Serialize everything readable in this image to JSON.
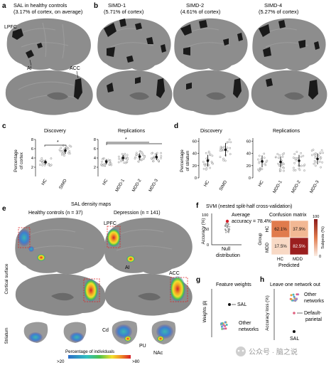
{
  "panel_letters": {
    "a": "a",
    "b": "b",
    "c": "c",
    "d": "d",
    "e": "e",
    "f": "f",
    "g": "g",
    "h": "h"
  },
  "panel_a": {
    "title_line1": "SAL in healthy controls",
    "title_line2": "(3.17% of cortex, on average)",
    "label_lpfc": "LPFC",
    "label_ai": "AI",
    "label_acc": "ACC"
  },
  "panel_b": {
    "cols": [
      {
        "title": "SIMD-1",
        "sub": "(5.71% of cortex)"
      },
      {
        "title": "SIMD-2",
        "sub": "(4.61% of cortex)"
      },
      {
        "title": "SIMD-4",
        "sub": "(5.27% of cortex)"
      }
    ]
  },
  "panel_c": {
    "discovery_title": "Discovery",
    "replication_title": "Replications",
    "ylabel_line1": "Percentage",
    "ylabel_line2": "of cortex",
    "yticks": [
      "2",
      "4",
      "6",
      "8"
    ],
    "sig": "*",
    "discovery_groups": [
      "HC",
      "SIMD"
    ],
    "replication_groups": [
      "HC",
      "MDD-1",
      "MDD-2",
      "MDD-3"
    ]
  },
  "panel_d": {
    "discovery_title": "Discovery",
    "replication_title": "Replications",
    "ylabel_line1": "Percentage",
    "ylabel_line2": "of striatum",
    "yticks": [
      "0",
      "20",
      "40",
      "60"
    ],
    "discovery_groups": [
      "HC",
      "SIMD"
    ],
    "replication_groups": [
      "HC",
      "MDD-1",
      "MDD-2",
      "MDD-3"
    ]
  },
  "panel_e": {
    "title": "SAL density maps",
    "hc_title": "Healthy controls (n = 37)",
    "dep_title": "Depression (n = 141)",
    "row_cortical": "Cortical surface",
    "row_striatum": "Striatum",
    "label_lpfc": "LPFC",
    "label_ai": "AI",
    "label_acc": "ACC",
    "label_cd": "Cd",
    "label_pu": "PU",
    "label_nac": "NAc",
    "colorbar_title": "Percentage of individuals",
    "colorbar_min": ">20",
    "colorbar_max": ">80"
  },
  "panel_f": {
    "title": "SVM (nested split-half cross-validation)",
    "ylabel": "Accuracy (%)",
    "yticks": [
      "100",
      "50",
      "0"
    ],
    "avg_line1": "Average",
    "avg_line2": "accuracy = 78.4%",
    "null_line1": "Null",
    "null_line2": "distribution",
    "cm_title": "Confusion matrix",
    "cm_row_axis": "Group",
    "cm_rows": [
      "HC",
      "MDD"
    ],
    "cm_col_axis": "Predicted",
    "cm_cols": [
      "HC",
      "MDD"
    ],
    "cm_values": [
      "62.1%",
      "37.9%",
      "17.5%",
      "82.5%"
    ],
    "cbar_title": "Subjects (%)",
    "cbar_max": "100",
    "cbar_min": "0"
  },
  "panel_g": {
    "title": "Feature weights",
    "ylabel": "Weights |β|",
    "label_sal": "SAL",
    "label_other_line1": "Other",
    "label_other_line2": "networks"
  },
  "panel_h": {
    "title": "Leave one network out",
    "ylabel": "Accuracy loss (%)",
    "label_other_line1": "Other",
    "label_other_line2": "networks",
    "label_dp_line1": "Default-",
    "label_dp_line2": "parietal",
    "label_sal": "SAL"
  },
  "watermark": {
    "text": "公众号 · 脑之说"
  },
  "chart_data": [
    {
      "type": "scatter",
      "title": "Discovery",
      "ylabel": "Percentage of cortex",
      "categories": [
        "HC",
        "SIMD"
      ],
      "series": [
        {
          "values": [
            3.1,
            5.6
          ]
        }
      ],
      "ylim": [
        0,
        8
      ],
      "annotations": [
        "*"
      ]
    },
    {
      "type": "scatter",
      "title": "Replications",
      "ylabel": "Percentage of cortex",
      "categories": [
        "HC",
        "MDD-1",
        "MDD-2",
        "MDD-3"
      ],
      "series": [
        {
          "values": [
            3.2,
            4.0,
            4.3,
            4.2
          ]
        }
      ],
      "ylim": [
        0,
        8
      ],
      "annotations": [
        "*"
      ]
    },
    {
      "type": "scatter",
      "title": "Discovery",
      "ylabel": "Percentage of striatum",
      "categories": [
        "HC",
        "SIMD"
      ],
      "series": [
        {
          "values": [
            28,
            46
          ]
        }
      ],
      "ylim": [
        0,
        65
      ]
    },
    {
      "type": "scatter",
      "title": "Replications",
      "ylabel": "Percentage of striatum",
      "categories": [
        "HC",
        "MDD-1",
        "MDD-2",
        "MDD-3"
      ],
      "series": [
        {
          "values": [
            27,
            26,
            28,
            31
          ]
        }
      ],
      "ylim": [
        0,
        65
      ]
    },
    {
      "type": "heatmap",
      "title": "Confusion matrix",
      "rows": [
        "HC",
        "MDD"
      ],
      "cols": [
        "HC",
        "MDD"
      ],
      "values": [
        [
          62.1,
          37.9
        ],
        [
          17.5,
          82.5
        ]
      ]
    }
  ]
}
